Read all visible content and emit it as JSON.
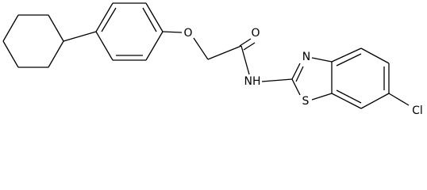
{
  "atoms": {
    "ether_oxygen": "O",
    "carbonyl_oxygen": "O",
    "amide_nitrogen": "NH",
    "thiazole_nitrogen": "N",
    "thiazole_sulfur": "S",
    "chlorine": "Cl"
  }
}
